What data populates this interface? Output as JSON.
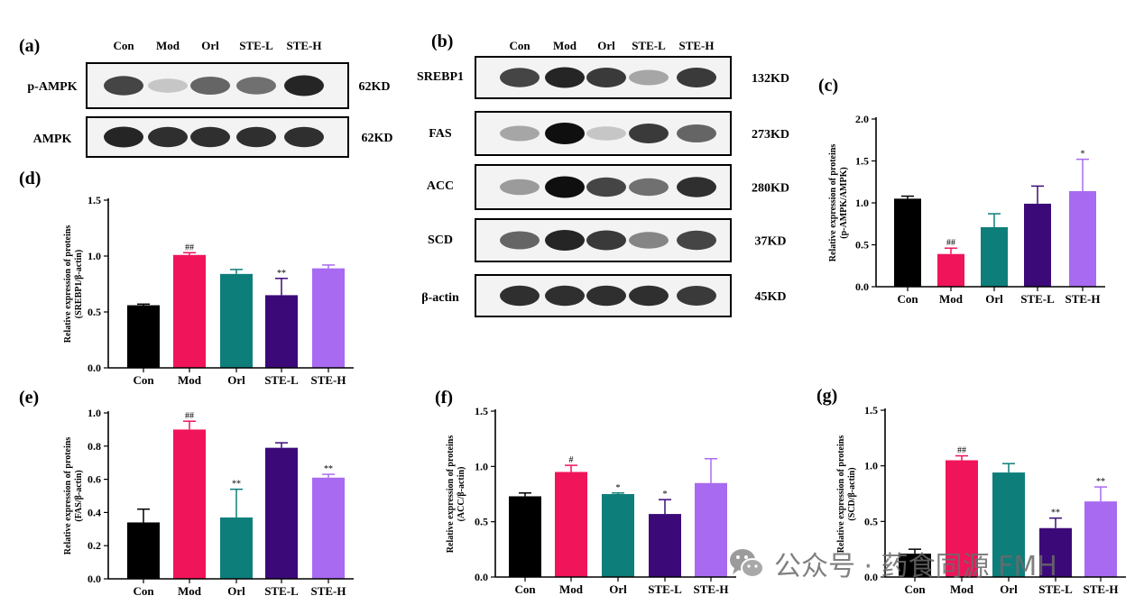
{
  "western_blots": [
    {
      "panel": "(a)",
      "groups": [
        "Con",
        "Mod",
        "Orl",
        "STE-L",
        "STE-H"
      ],
      "blots": [
        {
          "protein": "p-AMPK",
          "size": "62KD",
          "band_intensity": [
            0.75,
            0.15,
            0.6,
            0.55,
            0.9
          ]
        },
        {
          "protein": "AMPK",
          "size": "62KD",
          "band_intensity": [
            0.9,
            0.85,
            0.85,
            0.85,
            0.85
          ]
        }
      ]
    },
    {
      "panel": "(b)",
      "groups": [
        "Con",
        "Mod",
        "Orl",
        "STE-L",
        "STE-H"
      ],
      "blots": [
        {
          "protein": "SREBP1",
          "size": "132KD",
          "band_intensity": [
            0.75,
            0.9,
            0.8,
            0.3,
            0.8
          ]
        },
        {
          "protein": "FAS",
          "size": "273KD",
          "band_intensity": [
            0.3,
            1.0,
            0.15,
            0.8,
            0.6
          ]
        },
        {
          "protein": "ACC",
          "size": "280KD",
          "band_intensity": [
            0.35,
            1.0,
            0.75,
            0.55,
            0.85
          ]
        },
        {
          "protein": "SCD",
          "size": "37KD",
          "band_intensity": [
            0.6,
            0.9,
            0.8,
            0.45,
            0.75
          ]
        },
        {
          "protein": "β-actin",
          "size": "45KD",
          "band_intensity": [
            0.85,
            0.85,
            0.85,
            0.85,
            0.8
          ]
        }
      ]
    }
  ],
  "chart_data": [
    {
      "panel": "(c)",
      "type": "bar",
      "categories": [
        "Con",
        "Mod",
        "Orl",
        "STE-L",
        "STE-H"
      ],
      "values": [
        1.05,
        0.39,
        0.71,
        0.99,
        1.14
      ],
      "errors": [
        0.03,
        0.07,
        0.16,
        0.21,
        0.38
      ],
      "significance": [
        "",
        "##",
        "",
        "",
        "*"
      ],
      "ylabel": "Relative expression of proteins\n(p-AMPK/AMPK)",
      "ylim": [
        0,
        2.0
      ],
      "yticks": [
        "0.0",
        "0.5",
        "1.0",
        "1.5",
        "2.0"
      ]
    },
    {
      "panel": "(d)",
      "type": "bar",
      "categories": [
        "Con",
        "Mod",
        "Orl",
        "STE-L",
        "STE-H"
      ],
      "values": [
        0.56,
        1.01,
        0.84,
        0.65,
        0.89
      ],
      "errors": [
        0.01,
        0.02,
        0.04,
        0.15,
        0.03
      ],
      "significance": [
        "",
        "##",
        "",
        "**",
        ""
      ],
      "ylabel": "Relative expression of proteins\n(SREBP1/β-actin)",
      "ylim": [
        0,
        1.5
      ],
      "yticks": [
        "0.0",
        "0.5",
        "1.0",
        "1.5"
      ]
    },
    {
      "panel": "(e)",
      "type": "bar",
      "categories": [
        "Con",
        "Mod",
        "Orl",
        "STE-L",
        "STE-H"
      ],
      "values": [
        0.34,
        0.9,
        0.37,
        0.79,
        0.61
      ],
      "errors": [
        0.08,
        0.05,
        0.17,
        0.03,
        0.02
      ],
      "significance": [
        "",
        "##",
        "**",
        "",
        "**"
      ],
      "ylabel": "Relative expression of proteins\n(FAS/β-actin)",
      "ylim": [
        0,
        1.0
      ],
      "yticks": [
        "0.0",
        "0.2",
        "0.4",
        "0.6",
        "0.8",
        "1.0"
      ]
    },
    {
      "panel": "(f)",
      "type": "bar",
      "categories": [
        "Con",
        "Mod",
        "Orl",
        "STE-L",
        "STE-H"
      ],
      "values": [
        0.73,
        0.95,
        0.75,
        0.57,
        0.85
      ],
      "errors": [
        0.03,
        0.06,
        0.01,
        0.13,
        0.22
      ],
      "significance": [
        "",
        "#",
        "*",
        "*",
        ""
      ],
      "ylabel": "Relative expression of proteins\n(ACC/β-actin)",
      "ylim": [
        0,
        1.5
      ],
      "yticks": [
        "0.0",
        "0.5",
        "1.0",
        "1.5"
      ]
    },
    {
      "panel": "(g)",
      "type": "bar",
      "categories": [
        "Con",
        "Mod",
        "Orl",
        "STE-L",
        "STE-H"
      ],
      "values": [
        0.21,
        1.05,
        0.94,
        0.44,
        0.68
      ],
      "errors": [
        0.04,
        0.04,
        0.08,
        0.09,
        0.13
      ],
      "significance": [
        "",
        "##",
        "",
        "**",
        "**"
      ],
      "ylabel": "Relative expression of proteins\n(SCD/β-actin)",
      "ylim": [
        0,
        1.5
      ],
      "yticks": [
        "0.0",
        "0.5",
        "1.0",
        "1.5"
      ]
    }
  ],
  "colors": {
    "Con": "#000000",
    "Mod": "#f0145a",
    "Orl": "#0e7e7a",
    "STE-L": "#3c0a78",
    "STE-H": "#a86af0"
  },
  "watermark": {
    "text": "公众号 · 药食同源 FMH",
    "icon": "wechat-icon"
  }
}
